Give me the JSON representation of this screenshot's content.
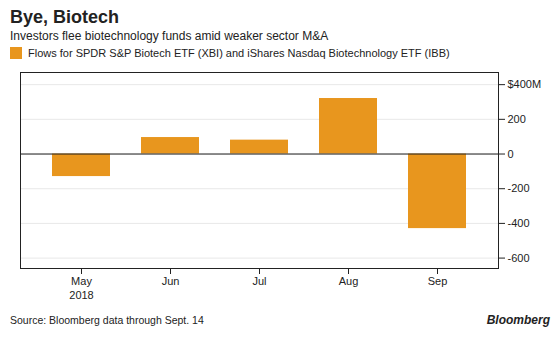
{
  "chart_data": {
    "type": "bar",
    "title": "Bye, Biotech",
    "subtitle": "Investors flee biotechnology funds amid weaker sector M&A",
    "categories": [
      "May",
      "Jun",
      "Jul",
      "Aug",
      "Sep"
    ],
    "series": [
      {
        "name": "Flows for SPDR S&P Biotech ETF (XBI) and iShares Nasdaq Biotechnology ETF (IBB)",
        "color": "#E8961E",
        "values": [
          -130,
          95,
          80,
          320,
          -430
        ]
      }
    ],
    "ylim": [
      -660,
      470
    ],
    "yticks": [
      -600,
      -400,
      -200,
      0,
      200,
      {
        "value": 400,
        "label": "$400M"
      }
    ],
    "grid": true,
    "annotations": [
      "2018",
      "Source: Bloomberg data through Sept. 14",
      "Bloomberg"
    ]
  }
}
